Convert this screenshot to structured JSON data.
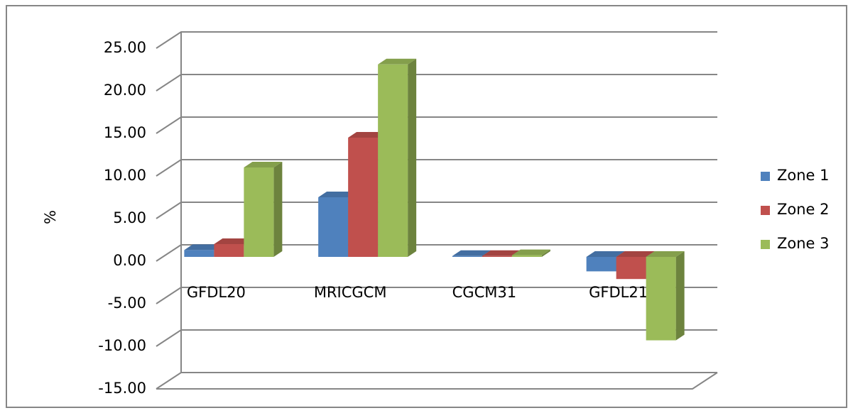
{
  "chart_data": {
    "type": "bar3d",
    "y_label": "%",
    "categories": [
      "GFDL20",
      "MRICGCM",
      "CGCM31",
      "GFDL21"
    ],
    "series": [
      {
        "name": "Zone 1",
        "color": "#4f81bd",
        "values": [
          0.8,
          7.0,
          0.1,
          -1.7
        ]
      },
      {
        "name": "Zone 2",
        "color": "#c0504d",
        "values": [
          1.5,
          14.0,
          0.1,
          -2.6
        ]
      },
      {
        "name": "Zone 3",
        "color": "#9bbb59",
        "values": [
          10.5,
          22.6,
          0.2,
          -9.8
        ]
      }
    ],
    "ylim": [
      -15,
      25
    ],
    "yticks": [
      {
        "value": -15,
        "label": "-15.00"
      },
      {
        "value": -10,
        "label": "-10.00"
      },
      {
        "value": -5,
        "label": "-5.00"
      },
      {
        "value": 0,
        "label": "0.00"
      },
      {
        "value": 5,
        "label": "5.00"
      },
      {
        "value": 10,
        "label": "10.00"
      },
      {
        "value": 15,
        "label": "15.00"
      },
      {
        "value": 20,
        "label": "20.00"
      },
      {
        "value": 25,
        "label": "25.00"
      }
    ],
    "grid": true,
    "legend": "right"
  }
}
